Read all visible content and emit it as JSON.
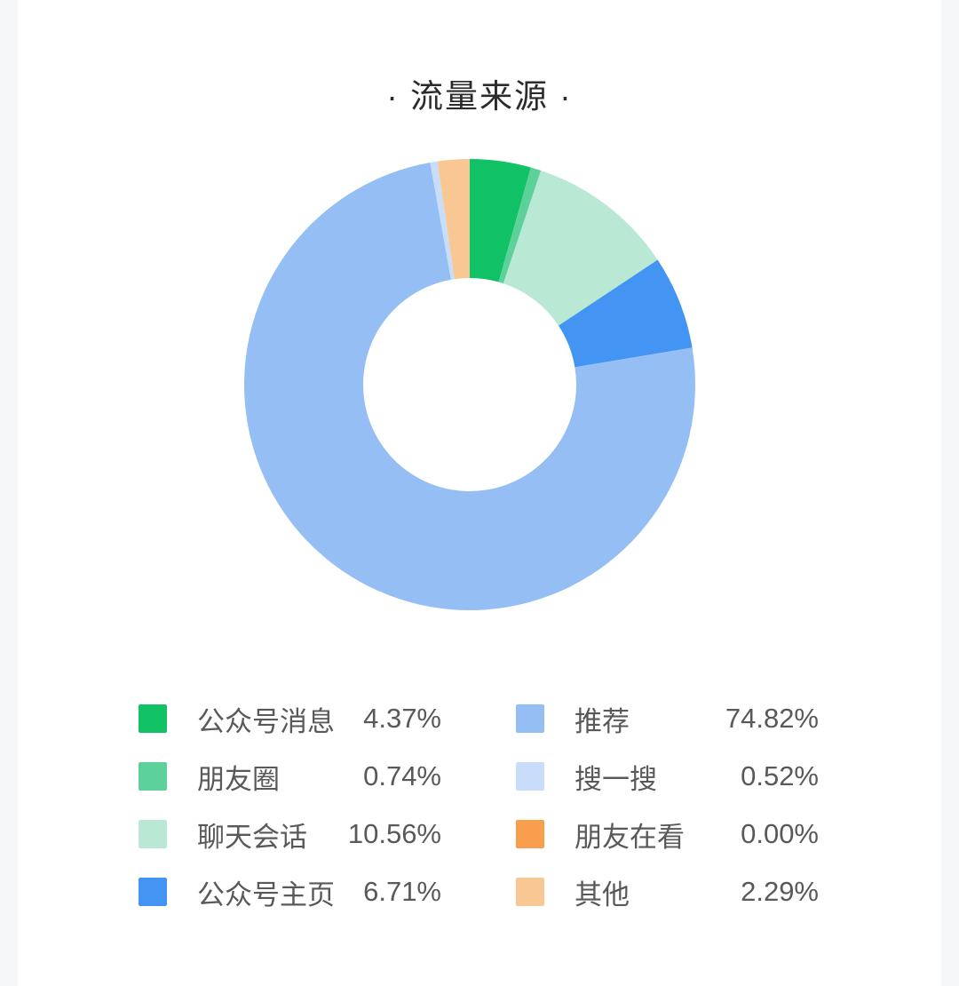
{
  "header": {
    "title": "· 流量来源 ·"
  },
  "chart_data": {
    "type": "pie",
    "variant": "donut",
    "title": "流量来源",
    "unit": "%",
    "start_angle_deg": 0,
    "direction": "clockwise",
    "inner_radius_ratio": 0.47,
    "legend_position": "bottom-two-columns",
    "series": [
      {
        "label": "公众号消息",
        "value": 4.37,
        "display": "4.37%",
        "color": "#11C166"
      },
      {
        "label": "朋友圈",
        "value": 0.74,
        "display": "0.74%",
        "color": "#5CD29A"
      },
      {
        "label": "聊天会话",
        "value": 10.56,
        "display": "10.56%",
        "color": "#B9E8D4"
      },
      {
        "label": "公众号主页",
        "value": 6.71,
        "display": "6.71%",
        "color": "#4394F3"
      },
      {
        "label": "推荐",
        "value": 74.82,
        "display": "74.82%",
        "color": "#94BEF4"
      },
      {
        "label": "搜一搜",
        "value": 0.52,
        "display": "0.52%",
        "color": "#C7DDF9"
      },
      {
        "label": "朋友在看",
        "value": 0.0,
        "display": "0.00%",
        "color": "#F99E4C"
      },
      {
        "label": "其他",
        "value": 2.29,
        "display": "2.29%",
        "color": "#F9C794"
      }
    ]
  }
}
